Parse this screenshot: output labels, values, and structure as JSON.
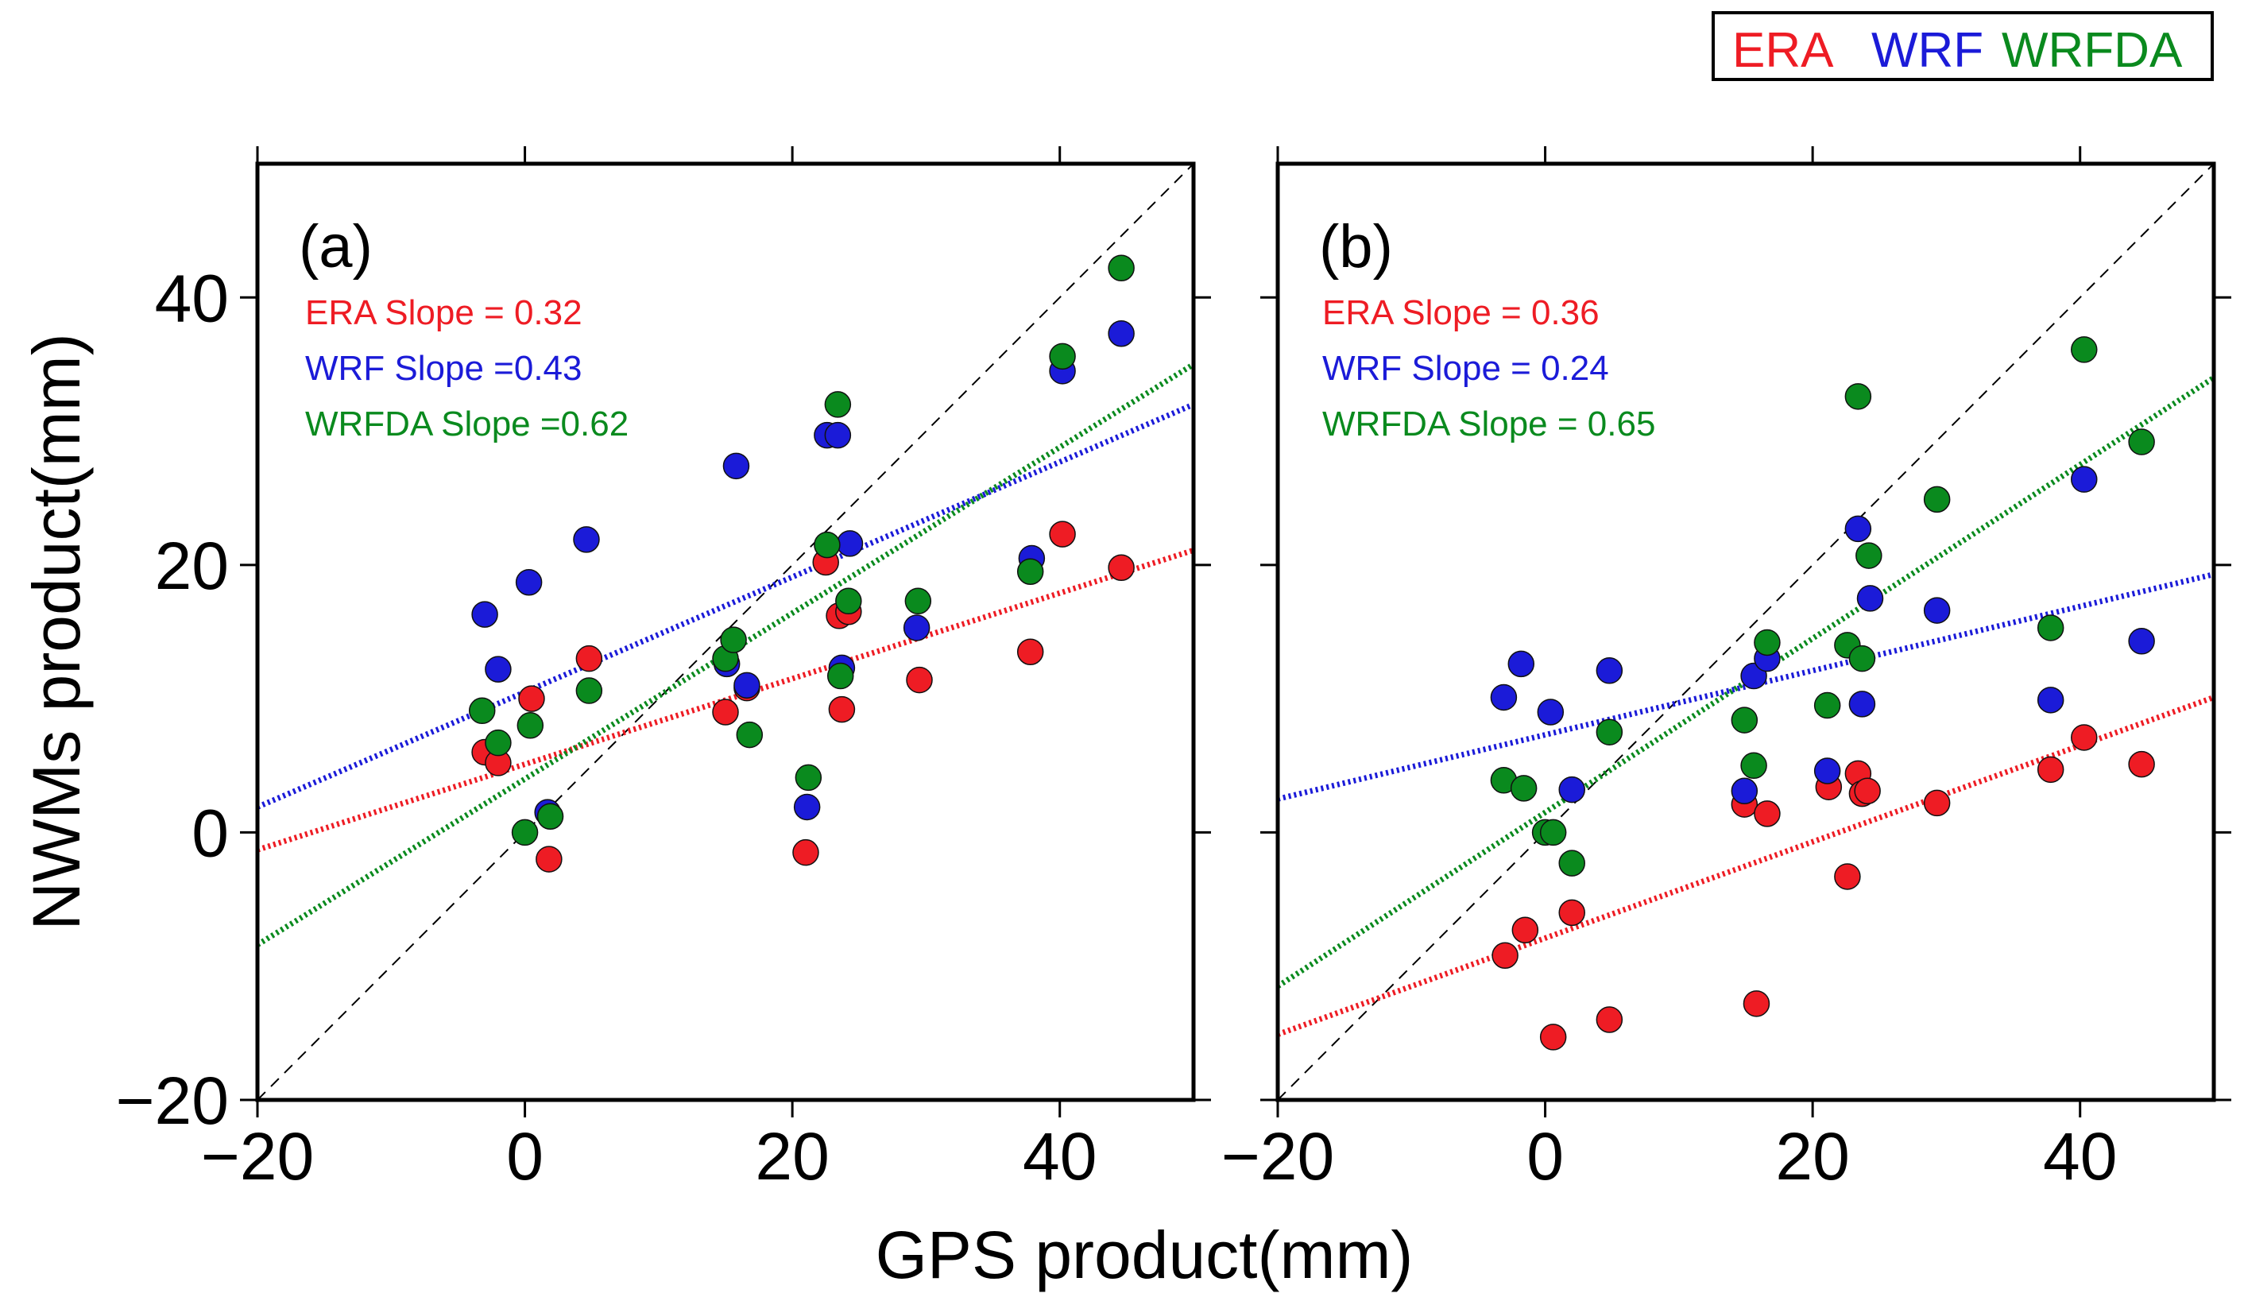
{
  "figure": {
    "xlabel": "GPS product(mm)",
    "ylabel": "NWMs product(mm)",
    "legend": [
      {
        "name": "ERA",
        "color": "#ee1c24"
      },
      {
        "name": "WRF",
        "color": "#1b1bd8"
      },
      {
        "name": "WRFDA",
        "color": "#0a8a1e"
      }
    ]
  },
  "chart_data": [
    {
      "type": "scatter",
      "panel": "(a)",
      "xlim": [
        -20,
        50
      ],
      "ylim": [
        -20,
        50
      ],
      "xticks": [
        -20,
        0,
        20,
        40
      ],
      "yticks": [
        -20,
        0,
        20,
        40
      ],
      "xtick_labels": [
        "−20",
        "0",
        "20",
        "40"
      ],
      "ytick_labels": [
        "−20",
        "0",
        "20",
        "40"
      ],
      "reference_line": "1:1",
      "series": [
        {
          "name": "ERA",
          "color": "#ee1c24",
          "slope_label": "ERA Slope = 0.32",
          "fit": {
            "slope": 0.32,
            "intercept": 5.1
          },
          "points": [
            [
              -3,
              6
            ],
            [
              -2,
              5.2
            ],
            [
              0.5,
              10
            ],
            [
              1.8,
              -2
            ],
            [
              4.8,
              13
            ],
            [
              15,
              9
            ],
            [
              16.6,
              10.8
            ],
            [
              21,
              -1.5
            ],
            [
              22.5,
              20.2
            ],
            [
              23.5,
              16.2
            ],
            [
              23.7,
              9.2
            ],
            [
              24.2,
              16.5
            ],
            [
              29.5,
              11.4
            ],
            [
              37.8,
              13.5
            ],
            [
              40.2,
              22.3
            ],
            [
              44.6,
              19.8
            ]
          ]
        },
        {
          "name": "WRF",
          "color": "#1b1bd8",
          "slope_label": "WRF Slope =0.43",
          "fit": {
            "slope": 0.43,
            "intercept": 10.5
          },
          "points": [
            [
              -3,
              16.3
            ],
            [
              -2,
              12.2
            ],
            [
              0.3,
              18.7
            ],
            [
              1.7,
              1.5
            ],
            [
              4.6,
              21.9
            ],
            [
              15.1,
              12.6
            ],
            [
              15.8,
              27.4
            ],
            [
              16.6,
              11
            ],
            [
              21.1,
              1.9
            ],
            [
              22.6,
              29.7
            ],
            [
              23.4,
              29.7
            ],
            [
              23.7,
              12.3
            ],
            [
              24.3,
              21.6
            ],
            [
              29.3,
              15.3
            ],
            [
              37.9,
              20.5
            ],
            [
              40.2,
              34.5
            ],
            [
              44.6,
              37.3
            ]
          ]
        },
        {
          "name": "WRFDA",
          "color": "#0a8a1e",
          "slope_label": "WRFDA Slope =0.62",
          "fit": {
            "slope": 0.62,
            "intercept": 4.0
          },
          "points": [
            [
              -3.2,
              9.1
            ],
            [
              -2,
              6.7
            ],
            [
              0,
              0
            ],
            [
              0.4,
              8
            ],
            [
              1.9,
              1.2
            ],
            [
              4.8,
              10.6
            ],
            [
              15,
              13
            ],
            [
              15.6,
              14.4
            ],
            [
              16.8,
              7.3
            ],
            [
              21.2,
              4.1
            ],
            [
              22.6,
              21.5
            ],
            [
              23.4,
              32
            ],
            [
              23.6,
              11.7
            ],
            [
              24.2,
              17.3
            ],
            [
              29.4,
              17.3
            ],
            [
              37.8,
              19.5
            ],
            [
              40.2,
              35.6
            ],
            [
              44.6,
              42.2
            ]
          ]
        }
      ]
    },
    {
      "type": "scatter",
      "panel": "(b)",
      "xlim": [
        -20,
        50
      ],
      "ylim": [
        -20,
        50
      ],
      "xticks": [
        -20,
        0,
        20,
        40
      ],
      "yticks": [
        -20,
        0,
        20,
        40
      ],
      "xtick_labels": [
        "−20",
        "0",
        "20",
        "40"
      ],
      "ytick_labels": [
        "",
        "",
        "",
        ""
      ],
      "reference_line": "1:1",
      "series": [
        {
          "name": "ERA",
          "color": "#ee1c24",
          "slope_label": "ERA Slope = 0.36",
          "fit": {
            "slope": 0.36,
            "intercept": -7.9
          },
          "points": [
            [
              -3,
              -9.2
            ],
            [
              -1.5,
              -7.3
            ],
            [
              0.6,
              -15.3
            ],
            [
              2,
              -6
            ],
            [
              4.8,
              -14
            ],
            [
              14.9,
              2.1
            ],
            [
              15.8,
              -12.8
            ],
            [
              16.6,
              1.4
            ],
            [
              21.2,
              3.4
            ],
            [
              22.6,
              -3.3
            ],
            [
              23.4,
              4.4
            ],
            [
              23.7,
              2.9
            ],
            [
              24.1,
              3.1
            ],
            [
              29.3,
              2.2
            ],
            [
              37.8,
              4.7
            ],
            [
              40.3,
              7.1
            ],
            [
              44.6,
              5.1
            ]
          ]
        },
        {
          "name": "WRF",
          "color": "#1b1bd8",
          "slope_label": "WRF Slope = 0.24",
          "fit": {
            "slope": 0.24,
            "intercept": 7.3
          },
          "points": [
            [
              -3.1,
              10.1
            ],
            [
              -1.8,
              12.6
            ],
            [
              0.4,
              9
            ],
            [
              2,
              3.2
            ],
            [
              4.8,
              12.1
            ],
            [
              14.9,
              3.1
            ],
            [
              15.6,
              11.7
            ],
            [
              16.6,
              13
            ],
            [
              21.1,
              4.6
            ],
            [
              23.4,
              22.7
            ],
            [
              23.7,
              9.6
            ],
            [
              24.3,
              17.5
            ],
            [
              29.3,
              16.6
            ],
            [
              37.8,
              9.9
            ],
            [
              40.3,
              26.4
            ],
            [
              44.6,
              14.3
            ]
          ]
        },
        {
          "name": "WRFDA",
          "color": "#0a8a1e",
          "slope_label": "WRFDA Slope = 0.65",
          "fit": {
            "slope": 0.65,
            "intercept": 1.5
          },
          "points": [
            [
              -3.1,
              3.9
            ],
            [
              -1.6,
              3.3
            ],
            [
              0,
              0
            ],
            [
              0.6,
              0
            ],
            [
              2,
              -2.3
            ],
            [
              4.8,
              7.5
            ],
            [
              14.9,
              8.4
            ],
            [
              15.6,
              5
            ],
            [
              16.6,
              14.2
            ],
            [
              21.1,
              9.5
            ],
            [
              22.6,
              14
            ],
            [
              23.4,
              32.6
            ],
            [
              23.7,
              13
            ],
            [
              24.2,
              20.7
            ],
            [
              29.3,
              24.9
            ],
            [
              37.8,
              15.3
            ],
            [
              40.3,
              36.1
            ],
            [
              44.6,
              29.2
            ]
          ]
        }
      ]
    }
  ]
}
